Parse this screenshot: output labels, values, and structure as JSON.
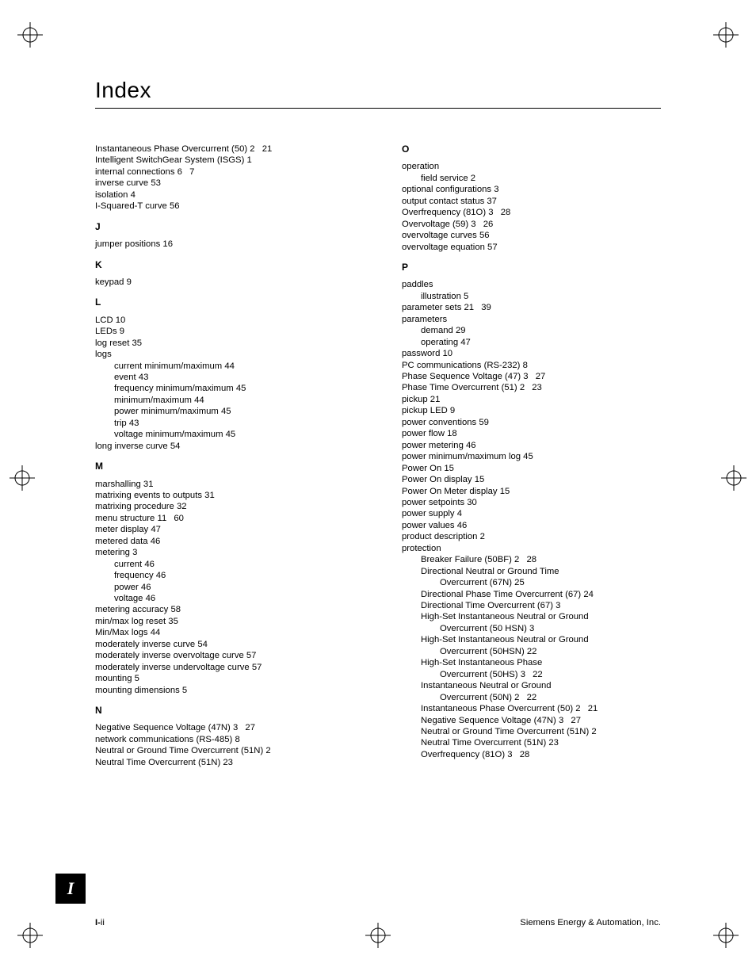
{
  "title": "Index",
  "sideTab": "I",
  "footer": {
    "leftBold": "I-",
    "leftRest": "ii",
    "right": "Siemens Energy & Automation, Inc."
  },
  "left": [
    {
      "t": "e",
      "text": "Instantaneous Phase Overcurrent (50)",
      "pages": [
        "2",
        "21"
      ]
    },
    {
      "t": "e",
      "text": "Intelligent SwitchGear System (ISGS)",
      "pages": [
        "1"
      ]
    },
    {
      "t": "e",
      "text": "internal connections",
      "pages": [
        "6",
        "7"
      ]
    },
    {
      "t": "e",
      "text": "inverse curve",
      "pages": [
        "53"
      ]
    },
    {
      "t": "e",
      "text": "isolation",
      "pages": [
        "4"
      ]
    },
    {
      "t": "e",
      "text": "I-Squared-T curve",
      "pages": [
        "56"
      ]
    },
    {
      "t": "h",
      "text": "J"
    },
    {
      "t": "e",
      "text": "jumper positions",
      "pages": [
        "16"
      ]
    },
    {
      "t": "h",
      "text": "K"
    },
    {
      "t": "e",
      "text": "keypad",
      "pages": [
        "9"
      ]
    },
    {
      "t": "h",
      "text": "L"
    },
    {
      "t": "e",
      "text": "LCD",
      "pages": [
        "10"
      ]
    },
    {
      "t": "e",
      "text": "LEDs",
      "pages": [
        "9"
      ]
    },
    {
      "t": "e",
      "text": "log reset",
      "pages": [
        "35"
      ]
    },
    {
      "t": "e",
      "text": "logs",
      "pages": []
    },
    {
      "t": "s1",
      "text": "current minimum/maximum",
      "pages": [
        "44"
      ]
    },
    {
      "t": "s1",
      "text": "event",
      "pages": [
        "43"
      ]
    },
    {
      "t": "s1",
      "text": "frequency minimum/maximum",
      "pages": [
        "45"
      ]
    },
    {
      "t": "s1",
      "text": "minimum/maximum",
      "pages": [
        "44"
      ]
    },
    {
      "t": "s1",
      "text": "power minimum/maximum",
      "pages": [
        "45"
      ]
    },
    {
      "t": "s1",
      "text": "trip",
      "pages": [
        "43"
      ]
    },
    {
      "t": "s1",
      "text": "voltage minimum/maximum",
      "pages": [
        "45"
      ]
    },
    {
      "t": "e",
      "text": "long inverse curve",
      "pages": [
        "54"
      ]
    },
    {
      "t": "h",
      "text": "M"
    },
    {
      "t": "e",
      "text": "marshalling",
      "pages": [
        "31"
      ]
    },
    {
      "t": "e",
      "text": "matrixing events to outputs",
      "pages": [
        "31"
      ]
    },
    {
      "t": "e",
      "text": "matrixing procedure",
      "pages": [
        "32"
      ]
    },
    {
      "t": "e",
      "text": "menu structure",
      "pages": [
        "11",
        "60"
      ]
    },
    {
      "t": "e",
      "text": "meter display",
      "pages": [
        "47"
      ]
    },
    {
      "t": "e",
      "text": "metered data",
      "pages": [
        "46"
      ]
    },
    {
      "t": "e",
      "text": "metering",
      "pages": [
        "3"
      ]
    },
    {
      "t": "s1",
      "text": "current",
      "pages": [
        "46"
      ]
    },
    {
      "t": "s1",
      "text": "frequency",
      "pages": [
        "46"
      ]
    },
    {
      "t": "s1",
      "text": "power",
      "pages": [
        "46"
      ]
    },
    {
      "t": "s1",
      "text": "voltage",
      "pages": [
        "46"
      ]
    },
    {
      "t": "e",
      "text": "metering accuracy",
      "pages": [
        "58"
      ]
    },
    {
      "t": "e",
      "text": "min/max log reset",
      "pages": [
        "35"
      ]
    },
    {
      "t": "e",
      "text": "Min/Max logs",
      "pages": [
        "44"
      ]
    },
    {
      "t": "e",
      "text": "moderately inverse curve",
      "pages": [
        "54"
      ]
    },
    {
      "t": "e",
      "text": "moderately inverse overvoltage curve",
      "pages": [
        "57"
      ]
    },
    {
      "t": "e",
      "text": "moderately inverse undervoltage curve",
      "pages": [
        "57"
      ]
    },
    {
      "t": "e",
      "text": "mounting",
      "pages": [
        "5"
      ]
    },
    {
      "t": "e",
      "text": "mounting dimensions",
      "pages": [
        "5"
      ]
    },
    {
      "t": "h",
      "text": "N"
    },
    {
      "t": "e",
      "text": "Negative Sequence Voltage (47N)",
      "pages": [
        "3",
        "27"
      ]
    },
    {
      "t": "e",
      "text": "network communications (RS-485)",
      "pages": [
        "8"
      ]
    },
    {
      "t": "e",
      "text": "Neutral or Ground Time Overcurrent (51N)",
      "pages": [
        "2"
      ]
    },
    {
      "t": "e",
      "text": "Neutral Time Overcurrent (51N)",
      "pages": [
        "23"
      ]
    }
  ],
  "right": [
    {
      "t": "h",
      "text": "O",
      "first": true
    },
    {
      "t": "e",
      "text": "operation",
      "pages": []
    },
    {
      "t": "s1",
      "text": "field service",
      "pages": [
        "2"
      ]
    },
    {
      "t": "e",
      "text": "optional configurations",
      "pages": [
        "3"
      ]
    },
    {
      "t": "e",
      "text": "output contact status",
      "pages": [
        "37"
      ]
    },
    {
      "t": "e",
      "text": "Overfrequency (81O)",
      "pages": [
        "3",
        "28"
      ]
    },
    {
      "t": "e",
      "text": "Overvoltage (59)",
      "pages": [
        "3",
        "26"
      ]
    },
    {
      "t": "e",
      "text": "overvoltage curves",
      "pages": [
        "56"
      ]
    },
    {
      "t": "e",
      "text": "overvoltage equation",
      "pages": [
        "57"
      ]
    },
    {
      "t": "h",
      "text": "P"
    },
    {
      "t": "e",
      "text": "paddles",
      "pages": []
    },
    {
      "t": "s1",
      "text": "illustration",
      "pages": [
        "5"
      ]
    },
    {
      "t": "e",
      "text": "parameter sets",
      "pages": [
        "21",
        "39"
      ]
    },
    {
      "t": "e",
      "text": "parameters",
      "pages": []
    },
    {
      "t": "s1",
      "text": "demand",
      "pages": [
        "29"
      ]
    },
    {
      "t": "s1",
      "text": "operating",
      "pages": [
        "47"
      ]
    },
    {
      "t": "e",
      "text": "password",
      "pages": [
        "10"
      ]
    },
    {
      "t": "e",
      "text": "PC communications (RS-232)",
      "pages": [
        "8"
      ]
    },
    {
      "t": "e",
      "text": "Phase Sequence Voltage (47)",
      "pages": [
        "3",
        "27"
      ]
    },
    {
      "t": "e",
      "text": "Phase Time Overcurrent (51)",
      "pages": [
        "2",
        "23"
      ]
    },
    {
      "t": "e",
      "text": "pickup",
      "pages": [
        "21"
      ]
    },
    {
      "t": "e",
      "text": "pickup LED",
      "pages": [
        "9"
      ]
    },
    {
      "t": "e",
      "text": "power conventions",
      "pages": [
        "59"
      ]
    },
    {
      "t": "e",
      "text": "power flow",
      "pages": [
        "18"
      ]
    },
    {
      "t": "e",
      "text": "power metering",
      "pages": [
        "46"
      ]
    },
    {
      "t": "e",
      "text": "power minimum/maximum log",
      "pages": [
        "45"
      ]
    },
    {
      "t": "e",
      "text": "Power On",
      "pages": [
        "15"
      ]
    },
    {
      "t": "e",
      "text": "Power On display",
      "pages": [
        "15"
      ]
    },
    {
      "t": "e",
      "text": "Power On Meter display",
      "pages": [
        "15"
      ]
    },
    {
      "t": "e",
      "text": "power setpoints",
      "pages": [
        "30"
      ]
    },
    {
      "t": "e",
      "text": "power supply",
      "pages": [
        "4"
      ]
    },
    {
      "t": "e",
      "text": "power values",
      "pages": [
        "46"
      ]
    },
    {
      "t": "e",
      "text": "product description",
      "pages": [
        "2"
      ]
    },
    {
      "t": "e",
      "text": "protection",
      "pages": []
    },
    {
      "t": "s1",
      "text": "Breaker Failure (50BF)",
      "pages": [
        "2",
        "28"
      ]
    },
    {
      "t": "s1",
      "text": "Directional Neutral or Ground Time",
      "pages": []
    },
    {
      "t": "s2",
      "text": "Overcurrent (67N)",
      "pages": [
        "25"
      ]
    },
    {
      "t": "s1",
      "text": "Directional Phase Time Overcurrent (67)",
      "pages": [
        "24"
      ]
    },
    {
      "t": "s1",
      "text": "Directional Time Overcurrent (67)",
      "pages": [
        "3"
      ]
    },
    {
      "t": "s1",
      "text": "High-Set Instantaneous Neutral or Ground",
      "pages": []
    },
    {
      "t": "s2",
      "text": "Overcurrent (50 HSN)",
      "pages": [
        "3"
      ]
    },
    {
      "t": "s1",
      "text": "High-Set Instantaneous Neutral or Ground",
      "pages": []
    },
    {
      "t": "s2",
      "text": "Overcurrent (50HSN)",
      "pages": [
        "22"
      ]
    },
    {
      "t": "s1",
      "text": "High-Set Instantaneous Phase",
      "pages": []
    },
    {
      "t": "s2",
      "text": "Overcurrent (50HS)",
      "pages": [
        "3",
        "22"
      ]
    },
    {
      "t": "s1",
      "text": "Instantaneous Neutral or Ground",
      "pages": []
    },
    {
      "t": "s2",
      "text": "Overcurrent (50N)",
      "pages": [
        "2",
        "22"
      ]
    },
    {
      "t": "s1",
      "text": "Instantaneous Phase Overcurrent (50)",
      "pages": [
        "2",
        "21"
      ]
    },
    {
      "t": "s1",
      "text": "Negative Sequence Voltage (47N)",
      "pages": [
        "3",
        "27"
      ]
    },
    {
      "t": "s1",
      "text": "Neutral or Ground Time Overcurrent (51N)",
      "pages": [
        "2"
      ]
    },
    {
      "t": "s1",
      "text": "Neutral Time Overcurrent (51N)",
      "pages": [
        "23"
      ]
    },
    {
      "t": "s1",
      "text": "Overfrequency (81O)",
      "pages": [
        "3",
        "28"
      ]
    }
  ]
}
